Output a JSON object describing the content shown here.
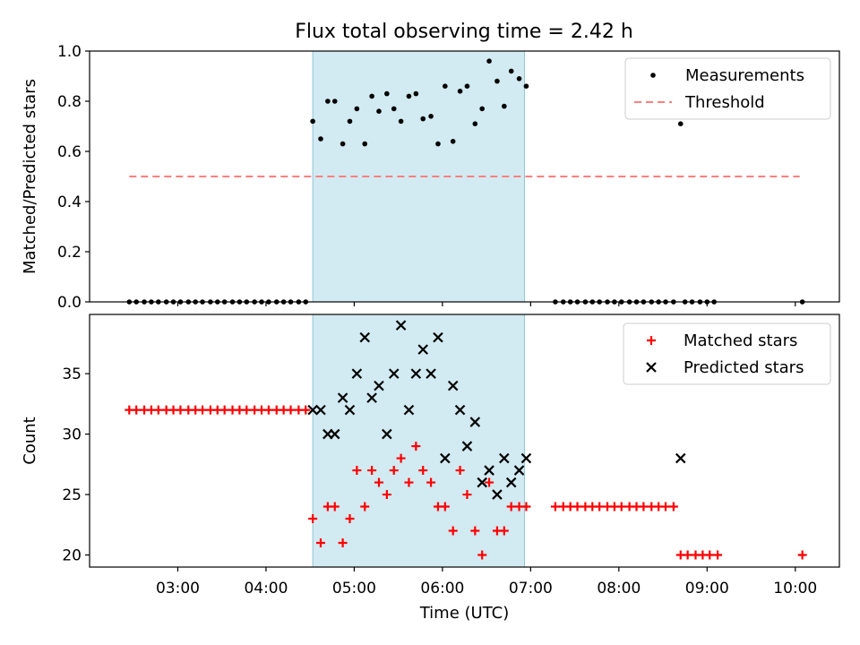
{
  "chart_data": [
    {
      "type": "scatter",
      "title": "Flux total observing time = 2.42 h",
      "ylabel": "Matched/Predicted stars",
      "ylim": [
        0,
        1.0
      ],
      "yticks": [
        "0.0",
        "0.2",
        "0.4",
        "0.6",
        "0.8",
        "1.0"
      ],
      "xlim_hours": [
        2.0,
        10.5
      ],
      "shaded_span_hours": [
        4.53,
        6.93
      ],
      "threshold": {
        "name": "Threshold",
        "value": 0.5,
        "x_hours": [
          2.45,
          10.05
        ]
      },
      "legend_position": "top-right",
      "series": [
        {
          "name": "Measurements",
          "points": [
            [
              2.45,
              0
            ],
            [
              2.53,
              0
            ],
            [
              2.62,
              0
            ],
            [
              2.7,
              0
            ],
            [
              2.78,
              0
            ],
            [
              2.87,
              0
            ],
            [
              2.95,
              0
            ],
            [
              3.03,
              0
            ],
            [
              3.12,
              0
            ],
            [
              3.2,
              0
            ],
            [
              3.28,
              0
            ],
            [
              3.37,
              0
            ],
            [
              3.45,
              0
            ],
            [
              3.53,
              0
            ],
            [
              3.62,
              0
            ],
            [
              3.7,
              0
            ],
            [
              3.78,
              0
            ],
            [
              3.87,
              0
            ],
            [
              3.95,
              0
            ],
            [
              4.03,
              0
            ],
            [
              4.12,
              0
            ],
            [
              4.2,
              0
            ],
            [
              4.28,
              0
            ],
            [
              4.37,
              0
            ],
            [
              4.45,
              0
            ],
            [
              4.53,
              0.72
            ],
            [
              4.62,
              0.65
            ],
            [
              4.7,
              0.8
            ],
            [
              4.78,
              0.8
            ],
            [
              4.87,
              0.63
            ],
            [
              4.95,
              0.72
            ],
            [
              5.03,
              0.77
            ],
            [
              5.12,
              0.63
            ],
            [
              5.2,
              0.82
            ],
            [
              5.28,
              0.76
            ],
            [
              5.37,
              0.83
            ],
            [
              5.45,
              0.77
            ],
            [
              5.53,
              0.72
            ],
            [
              5.62,
              0.82
            ],
            [
              5.7,
              0.83
            ],
            [
              5.78,
              0.73
            ],
            [
              5.87,
              0.74
            ],
            [
              5.95,
              0.63
            ],
            [
              6.03,
              0.86
            ],
            [
              6.12,
              0.64
            ],
            [
              6.2,
              0.84
            ],
            [
              6.28,
              0.86
            ],
            [
              6.37,
              0.71
            ],
            [
              6.45,
              0.77
            ],
            [
              6.53,
              0.96
            ],
            [
              6.62,
              0.88
            ],
            [
              6.7,
              0.78
            ],
            [
              6.78,
              0.92
            ],
            [
              6.87,
              0.89
            ],
            [
              6.95,
              0.86
            ],
            [
              7.28,
              0
            ],
            [
              7.37,
              0
            ],
            [
              7.45,
              0
            ],
            [
              7.53,
              0
            ],
            [
              7.62,
              0
            ],
            [
              7.7,
              0
            ],
            [
              7.78,
              0
            ],
            [
              7.87,
              0
            ],
            [
              7.95,
              0
            ],
            [
              8.03,
              0
            ],
            [
              8.12,
              0
            ],
            [
              8.2,
              0
            ],
            [
              8.28,
              0
            ],
            [
              8.37,
              0
            ],
            [
              8.45,
              0
            ],
            [
              8.53,
              0
            ],
            [
              8.62,
              0
            ],
            [
              8.7,
              0.71
            ],
            [
              8.75,
              0
            ],
            [
              8.83,
              0
            ],
            [
              8.92,
              0
            ],
            [
              9.0,
              0
            ],
            [
              9.08,
              0
            ],
            [
              10.08,
              0
            ]
          ]
        }
      ]
    },
    {
      "type": "scatter",
      "xlabel": "Time (UTC)",
      "ylabel": "Count",
      "ylim": [
        19,
        39.9
      ],
      "yticks": [
        "20",
        "25",
        "30",
        "35"
      ],
      "xticks": [
        "03:00",
        "04:00",
        "05:00",
        "06:00",
        "07:00",
        "08:00",
        "09:00",
        "10:00"
      ],
      "xlim_hours": [
        2.0,
        10.5
      ],
      "shaded_span_hours": [
        4.53,
        6.93
      ],
      "legend_position": "top-right",
      "series": [
        {
          "name": "Matched stars",
          "points": [
            [
              2.45,
              32
            ],
            [
              2.53,
              32
            ],
            [
              2.62,
              32
            ],
            [
              2.7,
              32
            ],
            [
              2.78,
              32
            ],
            [
              2.87,
              32
            ],
            [
              2.95,
              32
            ],
            [
              3.03,
              32
            ],
            [
              3.12,
              32
            ],
            [
              3.2,
              32
            ],
            [
              3.28,
              32
            ],
            [
              3.37,
              32
            ],
            [
              3.45,
              32
            ],
            [
              3.53,
              32
            ],
            [
              3.62,
              32
            ],
            [
              3.7,
              32
            ],
            [
              3.78,
              32
            ],
            [
              3.87,
              32
            ],
            [
              3.95,
              32
            ],
            [
              4.03,
              32
            ],
            [
              4.12,
              32
            ],
            [
              4.2,
              32
            ],
            [
              4.28,
              32
            ],
            [
              4.37,
              32
            ],
            [
              4.45,
              32
            ],
            [
              4.53,
              23
            ],
            [
              4.62,
              21
            ],
            [
              4.7,
              24
            ],
            [
              4.78,
              24
            ],
            [
              4.87,
              21
            ],
            [
              4.95,
              23
            ],
            [
              5.03,
              27
            ],
            [
              5.12,
              24
            ],
            [
              5.2,
              27
            ],
            [
              5.28,
              26
            ],
            [
              5.37,
              25
            ],
            [
              5.45,
              27
            ],
            [
              5.53,
              28
            ],
            [
              5.62,
              26
            ],
            [
              5.7,
              29
            ],
            [
              5.78,
              27
            ],
            [
              5.87,
              26
            ],
            [
              5.95,
              24
            ],
            [
              6.03,
              24
            ],
            [
              6.12,
              22
            ],
            [
              6.2,
              27
            ],
            [
              6.28,
              25
            ],
            [
              6.37,
              22
            ],
            [
              6.45,
              20
            ],
            [
              6.53,
              26
            ],
            [
              6.62,
              22
            ],
            [
              6.7,
              22
            ],
            [
              6.78,
              24
            ],
            [
              6.87,
              24
            ],
            [
              6.95,
              24
            ],
            [
              7.28,
              24
            ],
            [
              7.37,
              24
            ],
            [
              7.45,
              24
            ],
            [
              7.53,
              24
            ],
            [
              7.62,
              24
            ],
            [
              7.7,
              24
            ],
            [
              7.78,
              24
            ],
            [
              7.87,
              24
            ],
            [
              7.95,
              24
            ],
            [
              8.03,
              24
            ],
            [
              8.12,
              24
            ],
            [
              8.2,
              24
            ],
            [
              8.28,
              24
            ],
            [
              8.37,
              24
            ],
            [
              8.45,
              24
            ],
            [
              8.53,
              24
            ],
            [
              8.62,
              24
            ],
            [
              8.7,
              20
            ],
            [
              8.78,
              20
            ],
            [
              8.87,
              20
            ],
            [
              8.95,
              20
            ],
            [
              9.03,
              20
            ],
            [
              9.12,
              20
            ],
            [
              10.08,
              20
            ]
          ]
        },
        {
          "name": "Predicted stars",
          "points": [
            [
              4.53,
              32
            ],
            [
              4.62,
              32
            ],
            [
              4.7,
              30
            ],
            [
              4.78,
              30
            ],
            [
              4.87,
              33
            ],
            [
              4.95,
              32
            ],
            [
              5.03,
              35
            ],
            [
              5.12,
              38
            ],
            [
              5.2,
              33
            ],
            [
              5.28,
              34
            ],
            [
              5.37,
              30
            ],
            [
              5.45,
              35
            ],
            [
              5.53,
              39
            ],
            [
              5.62,
              32
            ],
            [
              5.7,
              35
            ],
            [
              5.78,
              37
            ],
            [
              5.87,
              35
            ],
            [
              5.95,
              38
            ],
            [
              6.03,
              28
            ],
            [
              6.12,
              34
            ],
            [
              6.2,
              32
            ],
            [
              6.28,
              29
            ],
            [
              6.37,
              31
            ],
            [
              6.45,
              26
            ],
            [
              6.53,
              27
            ],
            [
              6.62,
              25
            ],
            [
              6.7,
              28
            ],
            [
              6.78,
              26
            ],
            [
              6.87,
              27
            ],
            [
              6.95,
              28
            ],
            [
              8.7,
              28
            ]
          ]
        }
      ]
    }
  ],
  "colors": {
    "span": "#add8e6",
    "threshold": "#ff7f7f",
    "measurements": "#000000",
    "matched": "#ff0000",
    "predicted": "#000000"
  }
}
